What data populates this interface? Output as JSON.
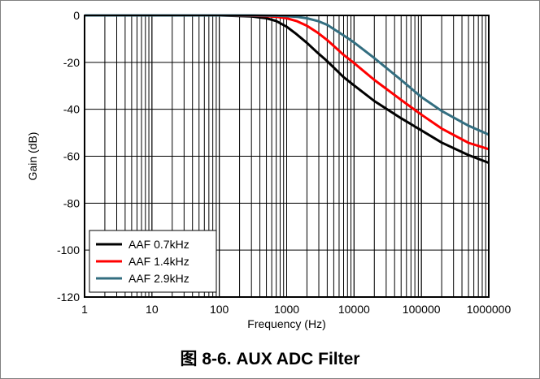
{
  "caption": "图 8-6. AUX ADC Filter",
  "chart_data": {
    "type": "line",
    "title": "",
    "xlabel": "Frequency (Hz)",
    "ylabel": "Gain (dB)",
    "xscale": "log",
    "xlim": [
      1,
      1000000
    ],
    "ylim": [
      -120,
      0
    ],
    "x_ticks": [
      "1",
      "10",
      "100",
      "1000",
      "10000",
      "100000",
      "1000000"
    ],
    "y_ticks": [
      "0",
      "-20",
      "-40",
      "-60",
      "-80",
      "-100",
      "-120"
    ],
    "grid": true,
    "legend_position": "bottom-left",
    "x": [
      1,
      10,
      100,
      300,
      500,
      700,
      1000,
      1400,
      2000,
      2900,
      4000,
      7000,
      10000,
      20000,
      50000,
      100000,
      200000,
      500000,
      1000000
    ],
    "series": [
      {
        "name": "AAF 0.7kHz",
        "color": "#000000",
        "values": [
          0,
          0,
          0,
          -0.4,
          -1.2,
          -2.4,
          -4.8,
          -8.0,
          -11.7,
          -16.0,
          -19.5,
          -26.3,
          -29.8,
          -36.5,
          -43.8,
          -49.0,
          -54.2,
          -59.5,
          -62.8
        ]
      },
      {
        "name": "AAF 1.4kHz",
        "color": "#ff0000",
        "values": [
          0,
          0,
          0,
          -0.1,
          -0.3,
          -0.6,
          -1.2,
          -2.4,
          -4.4,
          -7.4,
          -10.5,
          -16.8,
          -20.3,
          -27.5,
          -36.0,
          -42.3,
          -48.2,
          -54.3,
          -57.0
        ]
      },
      {
        "name": "AAF 2.9kHz",
        "color": "#336e80",
        "values": [
          0,
          0,
          0,
          0,
          -0.1,
          -0.15,
          -0.3,
          -0.6,
          -1.2,
          -2.4,
          -4.0,
          -8.5,
          -11.5,
          -18.2,
          -27.5,
          -34.8,
          -40.7,
          -47.0,
          -50.8
        ]
      }
    ]
  }
}
